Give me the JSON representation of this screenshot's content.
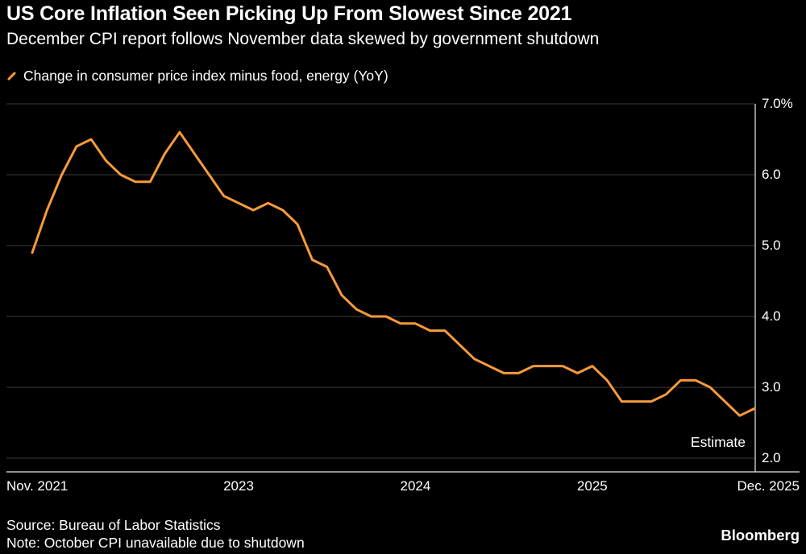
{
  "header": {
    "title": "US Core Inflation Seen Picking Up From Slowest Since 2021",
    "subtitle": "December CPI report follows November data skewed by government shutdown"
  },
  "legend": {
    "label": "Change in consumer price index minus food, energy (YoY)"
  },
  "footer": {
    "source": "Source: Bureau of Labor Statistics",
    "note": "Note: October CPI unavailable due to shutdown",
    "brand": "Bloomberg"
  },
  "colors": {
    "background": "#000000",
    "text": "#FFFFFF",
    "accent": "#F79A3B",
    "grid": "#3B3B3B",
    "axis": "#E8E8E8"
  },
  "chart_data": {
    "type": "line",
    "title": "US Core Inflation Seen Picking Up From Slowest Since 2021",
    "subtitle": "December CPI report follows November data skewed by government shutdown",
    "xlabel": "",
    "ylabel": "Change in consumer price index minus food, energy (YoY), %",
    "ylim": [
      2.0,
      7.0
    ],
    "grid": true,
    "legend_position": "top-left",
    "estimate_label": "Estimate",
    "yticks": [
      {
        "label": "7.0%",
        "value": 7.0
      },
      {
        "label": "6.0",
        "value": 6.0
      },
      {
        "label": "5.0",
        "value": 5.0
      },
      {
        "label": "4.0",
        "value": 4.0
      },
      {
        "label": "3.0",
        "value": 3.0
      },
      {
        "label": "2.0",
        "value": 2.0
      }
    ],
    "xticks": [
      {
        "label": "Nov. 2021",
        "index": 0,
        "align": "left"
      },
      {
        "label": "2023",
        "index": 14,
        "align": "center"
      },
      {
        "label": "2024",
        "index": 26,
        "align": "center"
      },
      {
        "label": "2025",
        "index": 38,
        "align": "center"
      },
      {
        "label": "Dec. 2025",
        "index": 49,
        "align": "right"
      }
    ],
    "series": [
      {
        "name": "Change in consumer price index minus food, energy (YoY)",
        "color": "#F79A3B",
        "x": [
          "Nov 2021",
          "Dec 2021",
          "Jan 2022",
          "Feb 2022",
          "Mar 2022",
          "Apr 2022",
          "May 2022",
          "Jun 2022",
          "Jul 2022",
          "Aug 2022",
          "Sep 2022",
          "Oct 2022",
          "Nov 2022",
          "Dec 2022",
          "Jan 2023",
          "Feb 2023",
          "Mar 2023",
          "Apr 2023",
          "May 2023",
          "Jun 2023",
          "Jul 2023",
          "Aug 2023",
          "Sep 2023",
          "Oct 2023",
          "Nov 2023",
          "Dec 2023",
          "Jan 2024",
          "Feb 2024",
          "Mar 2024",
          "Apr 2024",
          "May 2024",
          "Jun 2024",
          "Jul 2024",
          "Aug 2024",
          "Sep 2024",
          "Oct 2024",
          "Nov 2024",
          "Dec 2024",
          "Jan 2025",
          "Feb 2025",
          "Mar 2025",
          "Apr 2025",
          "May 2025",
          "Jun 2025",
          "Jul 2025",
          "Aug 2025",
          "Sep 2025",
          "Oct 2025",
          "Nov 2025",
          "Dec 2025"
        ],
        "values": [
          4.9,
          5.5,
          6.0,
          6.4,
          6.5,
          6.2,
          6.0,
          5.9,
          5.9,
          6.3,
          6.6,
          6.3,
          6.0,
          5.7,
          5.6,
          5.5,
          5.6,
          5.5,
          5.3,
          4.8,
          4.7,
          4.3,
          4.1,
          4.0,
          4.0,
          3.9,
          3.9,
          3.8,
          3.8,
          3.6,
          3.4,
          3.3,
          3.2,
          3.2,
          3.3,
          3.3,
          3.3,
          3.2,
          3.3,
          3.1,
          2.8,
          2.8,
          2.8,
          2.9,
          3.1,
          3.1,
          3.0,
          null,
          2.6,
          2.7
        ],
        "last_point_is_estimate": true
      }
    ]
  }
}
